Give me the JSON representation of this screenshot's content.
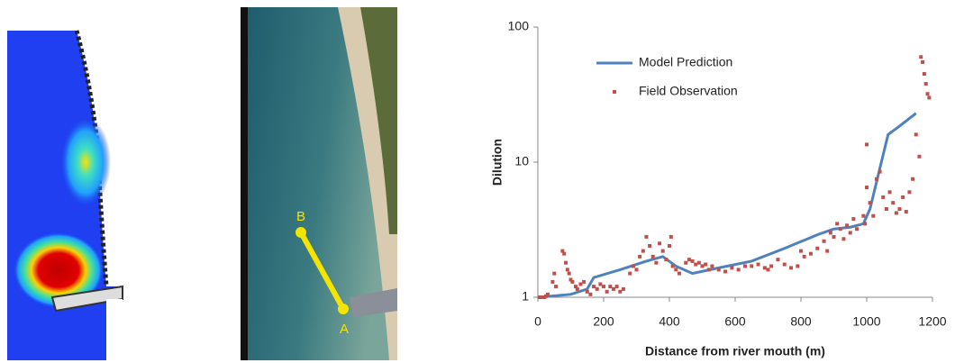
{
  "site_labels": {
    "start": "B",
    "end": "A"
  },
  "chart_data": {
    "type": "line",
    "xlabel": "Distance from river mouth (m)",
    "ylabel": "Dilution",
    "xlim": [
      0,
      1200
    ],
    "xticks": [
      0,
      200,
      400,
      600,
      800,
      1000,
      1200
    ],
    "ylim": [
      1,
      100
    ],
    "yticks": [
      1,
      10,
      100
    ],
    "log_y": true,
    "grid": false,
    "legend": "upper left",
    "series": [
      {
        "name": "Model Prediction",
        "color": "#4f81bd",
        "style": "line",
        "x": [
          0,
          100,
          150,
          170,
          250,
          330,
          380,
          420,
          470,
          550,
          650,
          750,
          850,
          900,
          950,
          990,
          1010,
          1040,
          1065,
          1100,
          1150
        ],
        "values": [
          1,
          1.05,
          1.15,
          1.4,
          1.6,
          1.85,
          2.0,
          1.7,
          1.5,
          1.65,
          1.85,
          2.3,
          2.9,
          3.2,
          3.3,
          3.5,
          4.5,
          9,
          16,
          18.5,
          23
        ]
      },
      {
        "name": "Field Observation",
        "color": "#c0504d",
        "style": "markers",
        "x": [
          5,
          10,
          15,
          20,
          25,
          30,
          45,
          50,
          55,
          75,
          80,
          85,
          90,
          95,
          100,
          105,
          115,
          120,
          130,
          140,
          150,
          160,
          170,
          180,
          190,
          200,
          210,
          220,
          230,
          240,
          250,
          260,
          280,
          290,
          300,
          310,
          320,
          330,
          340,
          350,
          360,
          370,
          380,
          390,
          400,
          405,
          410,
          420,
          430,
          450,
          460,
          470,
          480,
          490,
          500,
          510,
          520,
          530,
          550,
          570,
          590,
          610,
          630,
          650,
          670,
          690,
          700,
          710,
          730,
          750,
          770,
          790,
          800,
          810,
          830,
          850,
          870,
          880,
          890,
          900,
          910,
          920,
          930,
          940,
          950,
          960,
          970,
          990,
          995,
          1000,
          1000,
          1010,
          1020,
          1030,
          1040,
          1050,
          1060,
          1070,
          1080,
          1090,
          1100,
          1110,
          1120,
          1130,
          1140,
          1150,
          1160,
          1165,
          1170,
          1175,
          1180,
          1185,
          1190
        ],
        "values": [
          1,
          1,
          1,
          1,
          1.02,
          1.05,
          1.3,
          1.5,
          1.2,
          2.2,
          2.1,
          1.8,
          1.6,
          1.5,
          1.35,
          1.3,
          1.2,
          1.15,
          1.25,
          1.3,
          1.1,
          1.05,
          1.2,
          1.15,
          1.25,
          1.2,
          1.1,
          1.2,
          1.15,
          1.2,
          1.1,
          1.15,
          1.5,
          1.7,
          1.6,
          2.0,
          2.2,
          2.8,
          2.4,
          2.0,
          1.8,
          2.5,
          2.2,
          1.9,
          2.4,
          2.8,
          1.7,
          1.6,
          1.5,
          1.8,
          1.9,
          1.85,
          1.75,
          1.8,
          1.7,
          1.75,
          1.6,
          1.7,
          1.6,
          1.55,
          1.65,
          1.6,
          1.7,
          1.7,
          1.75,
          1.65,
          1.6,
          1.7,
          1.9,
          1.75,
          1.65,
          1.7,
          2.2,
          2.0,
          2.1,
          2.3,
          2.6,
          2.2,
          3.0,
          2.8,
          3.5,
          3.2,
          2.7,
          3.4,
          3.0,
          3.8,
          3.2,
          4.0,
          3.5,
          6.5,
          13.5,
          5.0,
          4.0,
          7.5,
          8.5,
          5.5,
          4.5,
          6.0,
          5.0,
          4.2,
          4.5,
          5.5,
          4.3,
          6.0,
          7.5,
          16,
          11,
          60,
          55,
          45,
          38,
          32,
          30
        ]
      }
    ]
  }
}
